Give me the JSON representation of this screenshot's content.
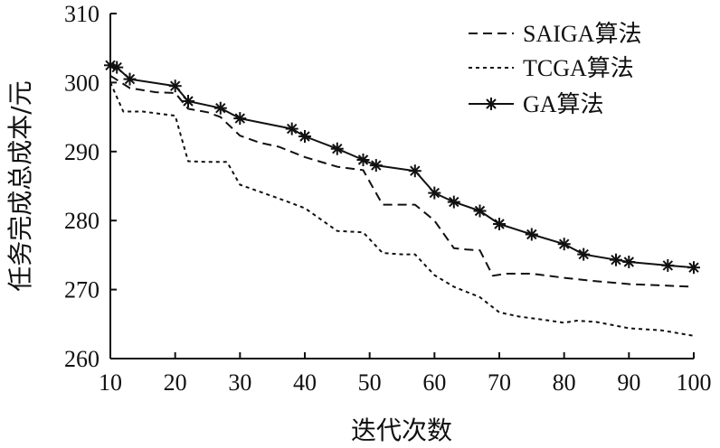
{
  "chart_data": {
    "type": "line",
    "xlabel": "迭代次数",
    "ylabel": "任务完成总成本/元",
    "xlim": [
      10,
      100
    ],
    "ylim": [
      260,
      310
    ],
    "xticks": [
      10,
      20,
      30,
      40,
      50,
      60,
      70,
      80,
      90,
      100
    ],
    "yticks": [
      260,
      270,
      280,
      290,
      300,
      310
    ],
    "grid": false,
    "legend_position": "top-right",
    "series": [
      {
        "name": "SAIGA算法",
        "style": "dashed",
        "color": "#111111",
        "x": [
          10,
          13,
          17,
          20,
          22,
          25,
          27,
          30,
          33,
          36,
          40,
          45,
          49,
          52,
          54,
          57,
          60,
          63,
          65,
          67,
          69,
          71,
          75,
          80,
          85,
          90,
          95,
          100
        ],
        "y": [
          301,
          299.2,
          298.6,
          298.5,
          296.2,
          295.7,
          295,
          292.3,
          291.3,
          290.7,
          289.2,
          287.8,
          287.3,
          282.3,
          282.3,
          282.3,
          280,
          276,
          275.8,
          275.7,
          272,
          272.3,
          272.3,
          271.7,
          271.2,
          270.8,
          270.6,
          270.4
        ]
      },
      {
        "name": "TCGA算法",
        "style": "dotted",
        "color": "#111111",
        "x": [
          10,
          12,
          15,
          20,
          22,
          25,
          28,
          30,
          33,
          36,
          40,
          45,
          49,
          52,
          55,
          57,
          60,
          63,
          67,
          70,
          73,
          77,
          80,
          82,
          85,
          90,
          95,
          100
        ],
        "y": [
          300,
          295.8,
          295.8,
          295.2,
          288.6,
          288.5,
          288.5,
          285.2,
          284.2,
          283.2,
          281.8,
          278.5,
          278.3,
          275.3,
          275.1,
          275.1,
          272.1,
          270.4,
          268.9,
          266.7,
          266.1,
          265.6,
          265.2,
          265.5,
          265.3,
          264.4,
          264.1,
          263.3
        ]
      },
      {
        "name": "GA算法",
        "style": "solid-star",
        "color": "#111111",
        "x": [
          10,
          11,
          13,
          20,
          22,
          27,
          30,
          38,
          40,
          45,
          49,
          51,
          57,
          60,
          63,
          67,
          70,
          75,
          80,
          83,
          88,
          90,
          96,
          100
        ],
        "y": [
          302.5,
          302.2,
          300.5,
          299.5,
          297.3,
          296.3,
          294.8,
          293.3,
          292.2,
          290.4,
          288.8,
          288,
          287.2,
          284,
          282.7,
          281.4,
          279.5,
          278,
          276.6,
          275.1,
          274.3,
          274,
          273.5,
          273.2
        ]
      }
    ]
  }
}
